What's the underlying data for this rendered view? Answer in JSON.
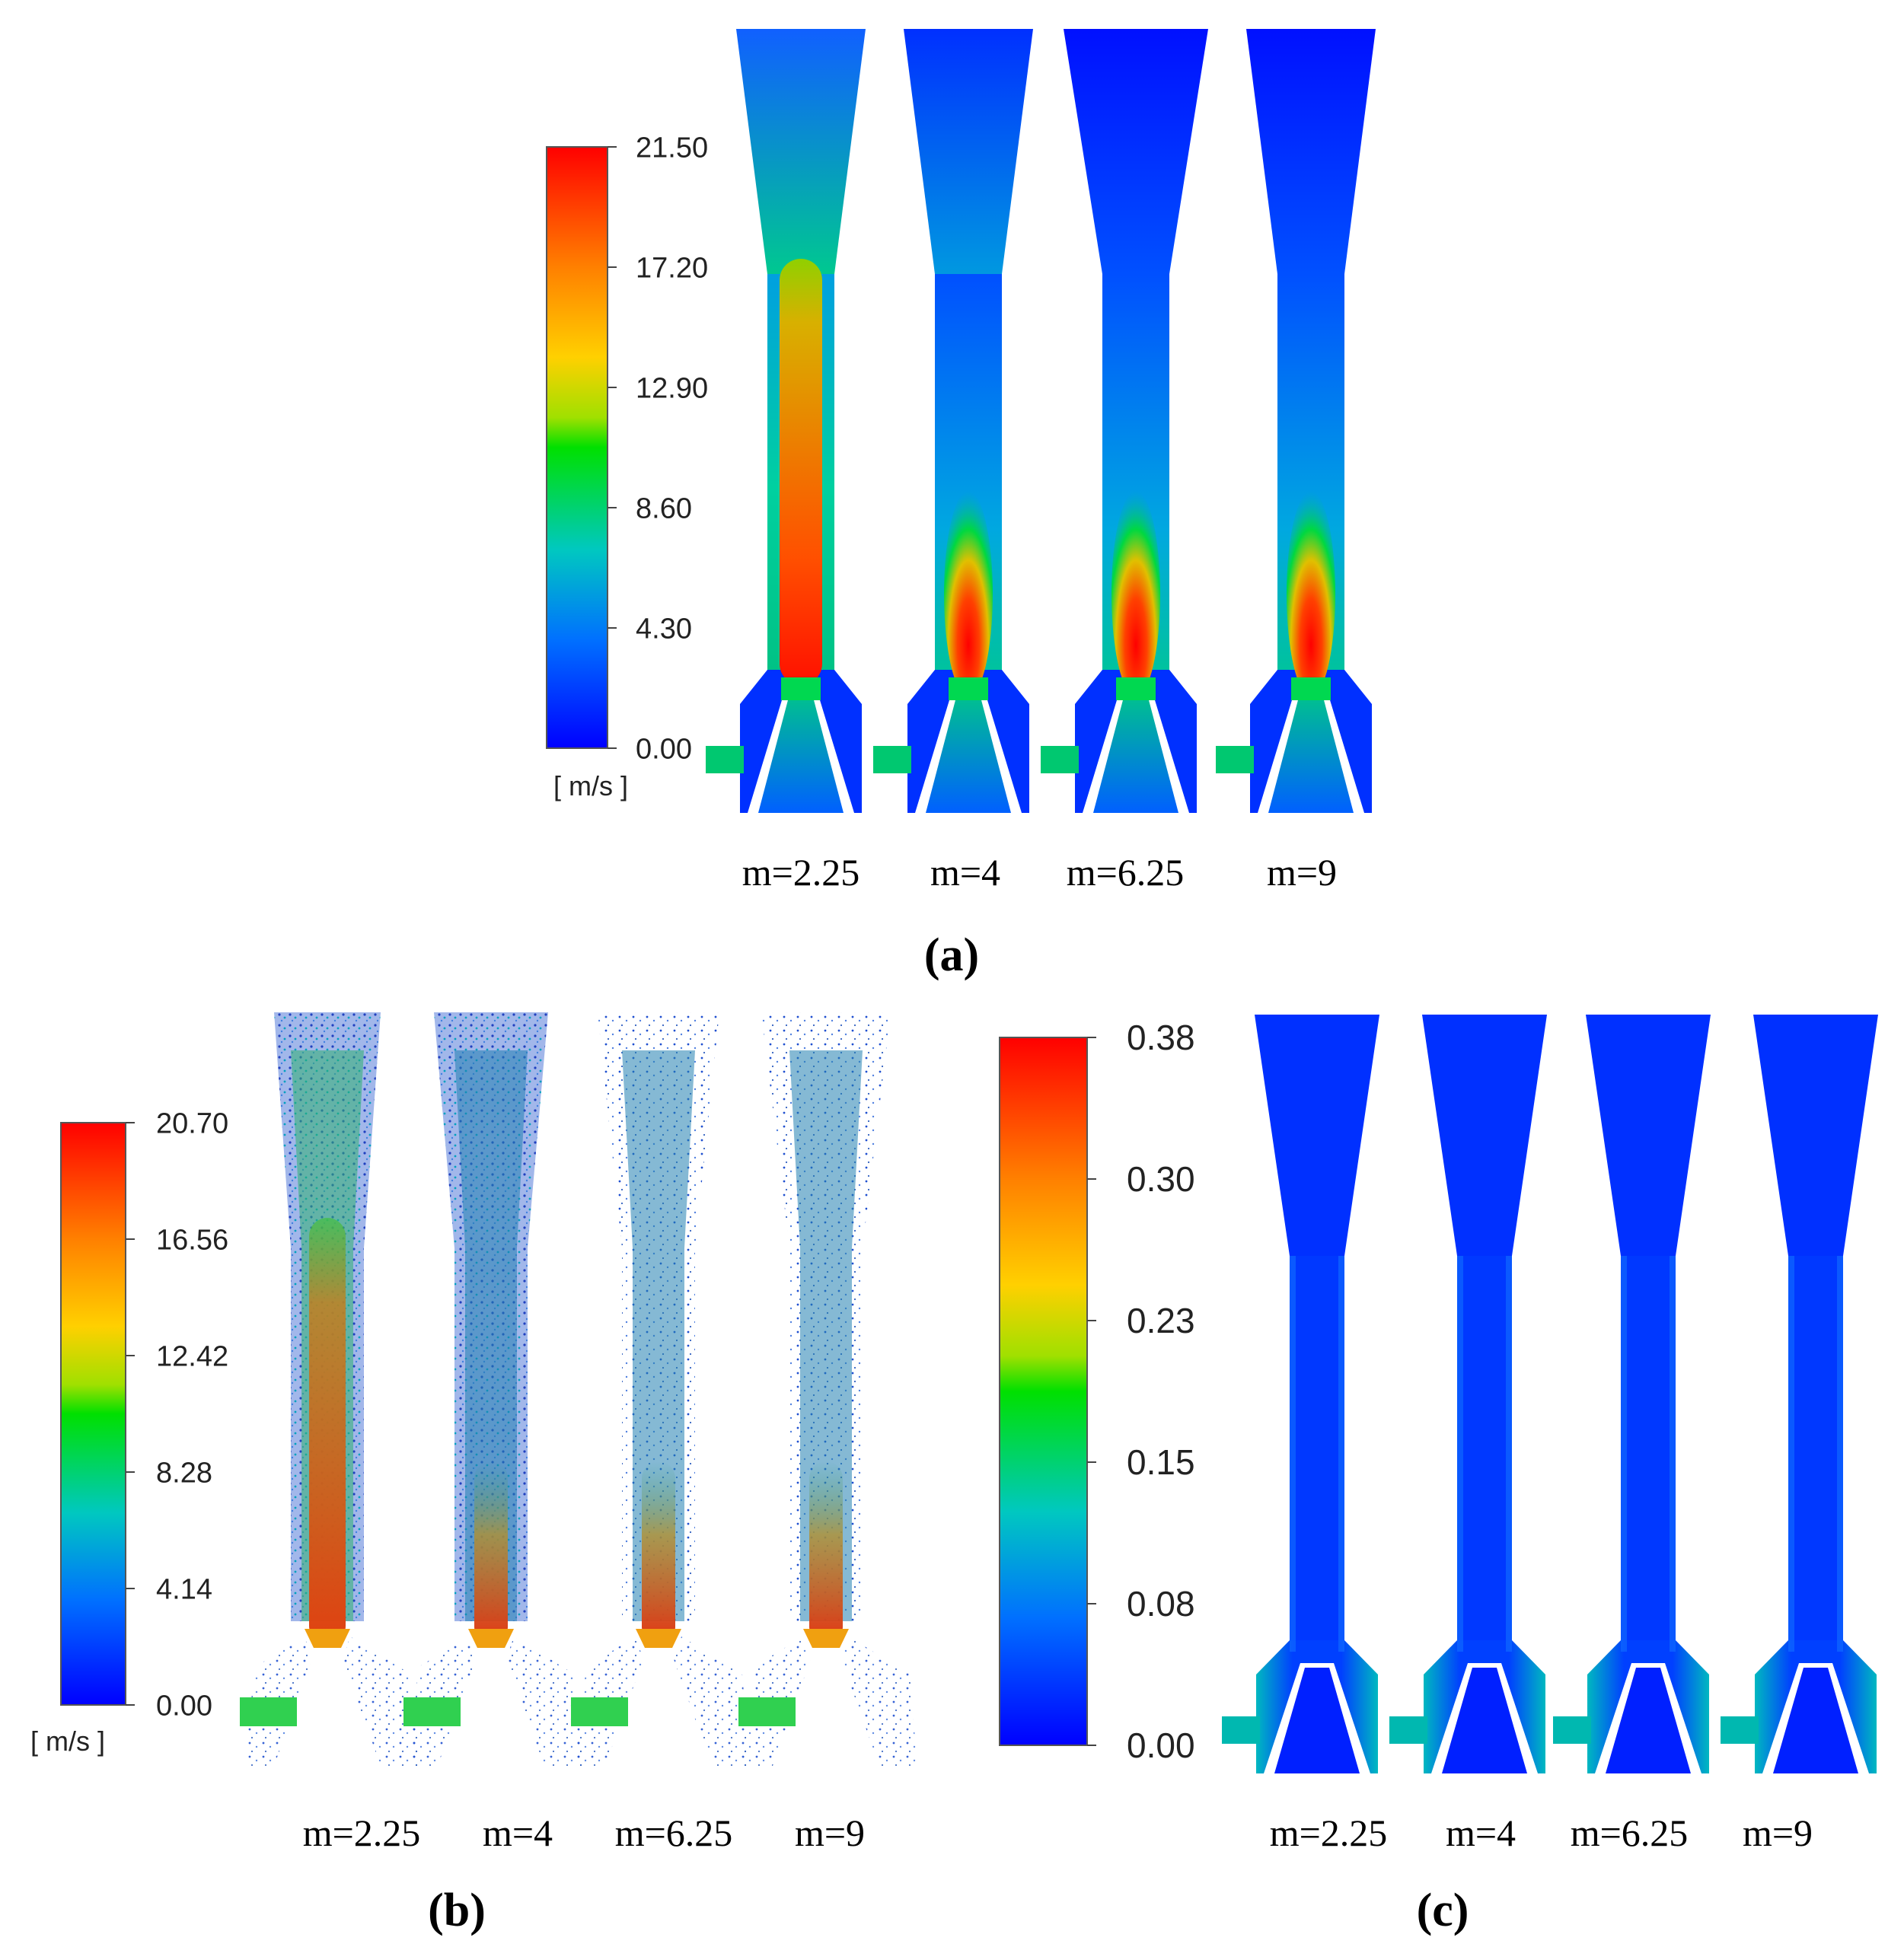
{
  "panel_a": {
    "caption": "(a)",
    "colorbar": {
      "ticks": [
        "21.50",
        "17.20",
        "12.90",
        "8.60",
        "4.30",
        "0.00"
      ],
      "unit": "[ m/s ]",
      "range": [
        0.0,
        21.5
      ]
    },
    "cases": [
      {
        "label": "m=2.25",
        "m": 2.25
      },
      {
        "label": "m=4",
        "m": 4
      },
      {
        "label": "m=6.25",
        "m": 6.25
      },
      {
        "label": "m=9",
        "m": 9
      }
    ]
  },
  "panel_b": {
    "caption": "(b)",
    "colorbar": {
      "ticks": [
        "20.70",
        "16.56",
        "12.42",
        "8.28",
        "4.14",
        "0.00"
      ],
      "unit": "[ m/s ]",
      "range": [
        0.0,
        20.7
      ]
    },
    "cases": [
      {
        "label": "m=2.25",
        "m": 2.25
      },
      {
        "label": "m=4",
        "m": 4
      },
      {
        "label": "m=6.25",
        "m": 6.25
      },
      {
        "label": "m=9",
        "m": 9
      }
    ]
  },
  "panel_c": {
    "caption": "(c)",
    "colorbar": {
      "ticks": [
        "0.38",
        "0.30",
        "0.23",
        "0.15",
        "0.08",
        "0.00"
      ],
      "range": [
        0.0,
        0.38
      ]
    },
    "cases": [
      {
        "label": "m=2.25",
        "m": 2.25
      },
      {
        "label": "m=4",
        "m": 4
      },
      {
        "label": "m=6.25",
        "m": 6.25
      },
      {
        "label": "m=9",
        "m": 9
      }
    ]
  },
  "colors": {
    "scale_top": "#ff0000",
    "scale_upper": "#ff8000",
    "scale_mid_upper": "#ffd000",
    "scale_mid": "#00e000",
    "scale_mid_lower": "#00d8a0",
    "scale_lower": "#00a0ff",
    "scale_bottom": "#0000ff"
  }
}
